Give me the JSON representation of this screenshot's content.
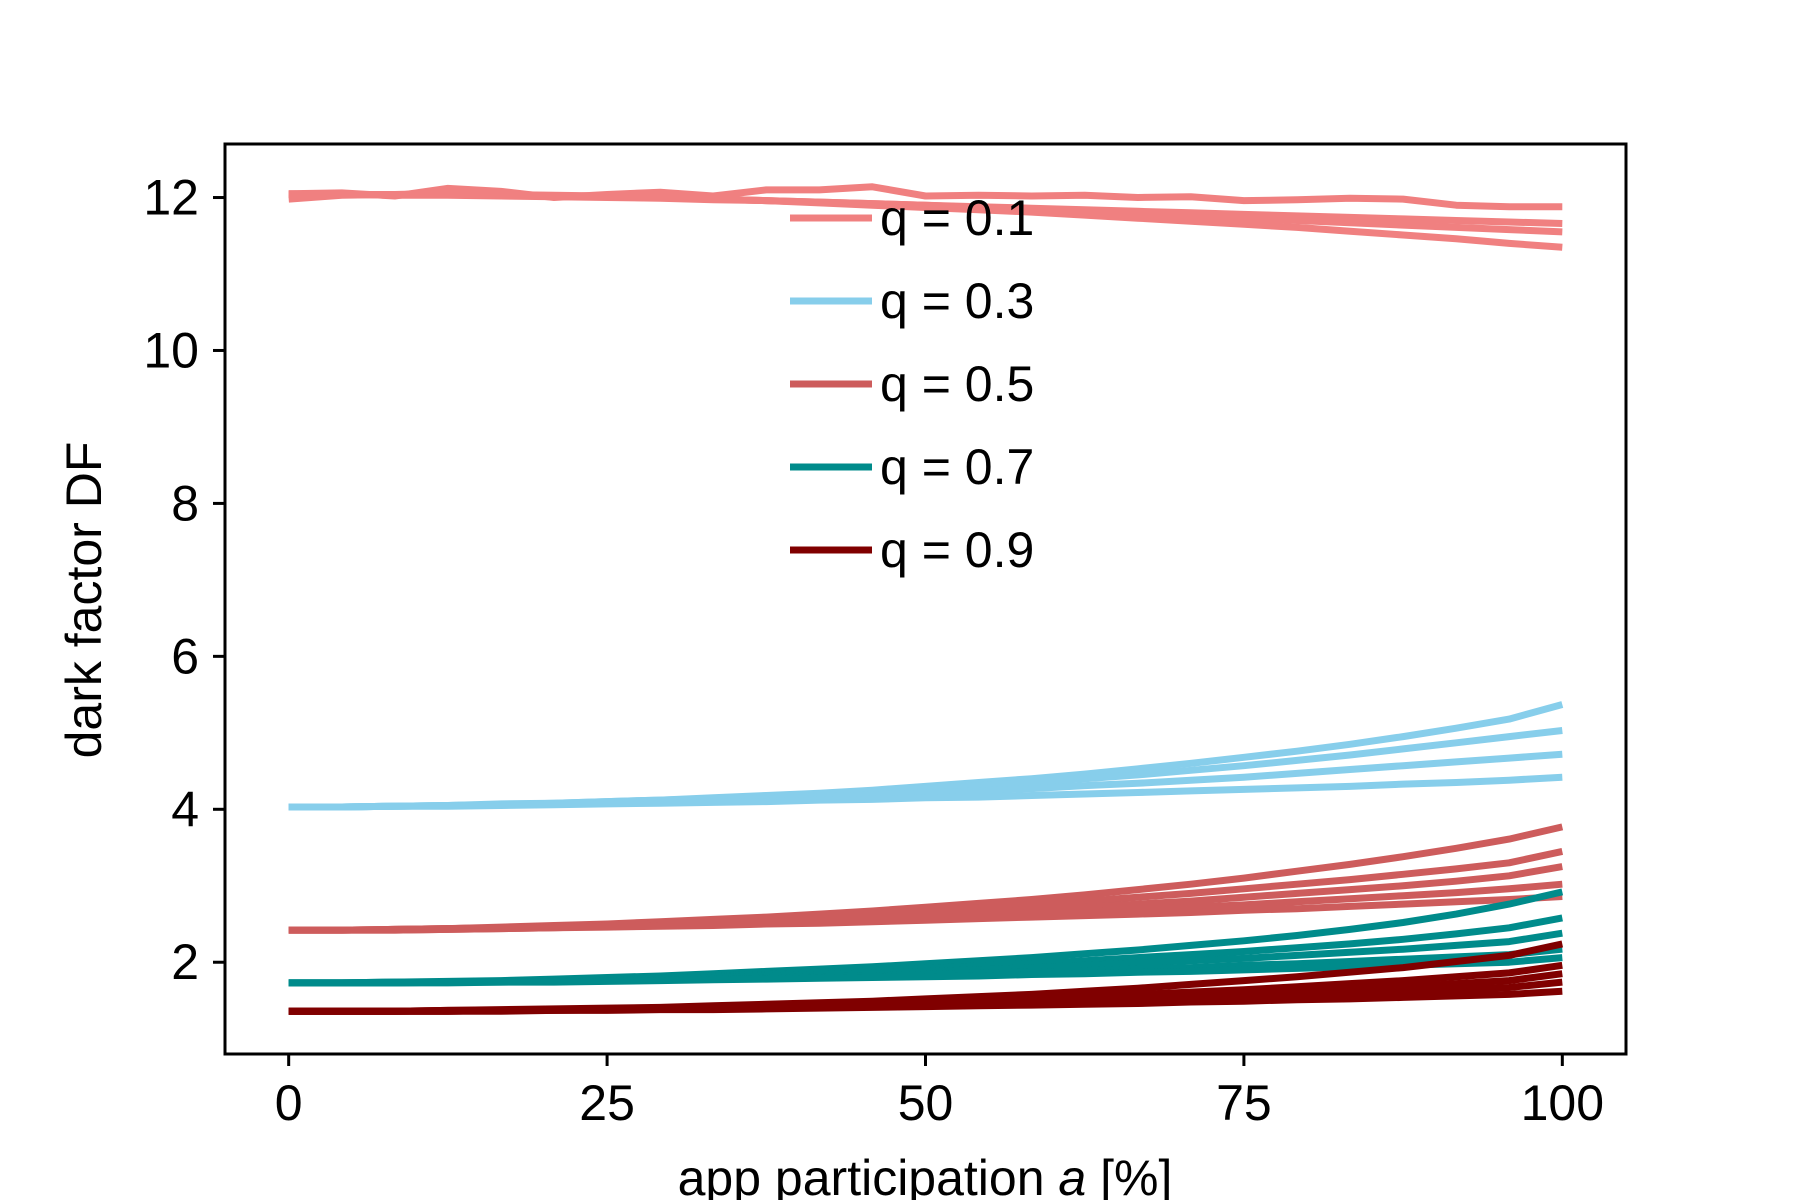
{
  "chart_data": {
    "type": "line",
    "title": "",
    "xlabel_main": "app participation ",
    "xlabel_var": "a",
    "xlabel_unit": " [%]",
    "ylabel": "dark factor DF",
    "xlim": [
      -5,
      105
    ],
    "ylim": [
      0.8,
      12.7
    ],
    "x_ticks": [
      0,
      25,
      50,
      75,
      100
    ],
    "y_ticks": [
      2,
      4,
      6,
      8,
      10,
      12
    ],
    "grid": false,
    "legend_position": "upper-center",
    "x": [
      0,
      4.17,
      8.33,
      12.5,
      16.67,
      20.83,
      25,
      29.17,
      33.33,
      37.5,
      41.67,
      45.83,
      50,
      54.17,
      58.33,
      62.5,
      66.67,
      70.83,
      75,
      79.17,
      83.33,
      87.5,
      91.67,
      95.83,
      100
    ],
    "groups": [
      {
        "name": "q = 0.1",
        "color": "#f08080",
        "curves": [
          [
            12.05,
            12.06,
            12.02,
            12.12,
            12.08,
            12.0,
            12.04,
            12.07,
            12.02,
            12.1,
            12.1,
            12.14,
            12.02,
            12.03,
            12.02,
            12.03,
            12.0,
            12.01,
            11.96,
            11.97,
            11.99,
            11.98,
            11.9,
            11.88,
            11.88
          ],
          [
            12.05,
            12.04,
            12.04,
            12.05,
            12.03,
            12.02,
            12.01,
            12.0,
            11.98,
            11.96,
            11.94,
            11.92,
            11.9,
            11.88,
            11.86,
            11.84,
            11.82,
            11.8,
            11.78,
            11.76,
            11.74,
            11.72,
            11.7,
            11.68,
            11.66
          ],
          [
            12.04,
            12.04,
            12.03,
            12.03,
            12.02,
            12.01,
            12.0,
            11.99,
            11.97,
            11.96,
            11.94,
            11.92,
            11.9,
            11.87,
            11.85,
            11.82,
            11.79,
            11.76,
            11.73,
            11.7,
            11.67,
            11.64,
            11.61,
            11.58,
            11.55
          ],
          [
            11.98,
            12.03,
            12.04,
            12.05,
            12.04,
            12.03,
            12.02,
            12.0,
            11.98,
            11.96,
            11.93,
            11.9,
            11.87,
            11.84,
            11.81,
            11.77,
            11.73,
            11.69,
            11.65,
            11.61,
            11.56,
            11.51,
            11.46,
            11.4,
            11.35
          ]
        ]
      },
      {
        "name": "q = 0.3",
        "color": "#87ceeb",
        "curves": [
          [
            4.03,
            4.03,
            4.04,
            4.05,
            4.07,
            4.08,
            4.1,
            4.12,
            4.15,
            4.18,
            4.21,
            4.25,
            4.3,
            4.35,
            4.4,
            4.46,
            4.53,
            4.6,
            4.68,
            4.76,
            4.85,
            4.95,
            5.06,
            5.18,
            5.37
          ],
          [
            4.03,
            4.03,
            4.04,
            4.05,
            4.06,
            4.08,
            4.1,
            4.12,
            4.14,
            4.17,
            4.2,
            4.23,
            4.27,
            4.31,
            4.35,
            4.4,
            4.45,
            4.51,
            4.57,
            4.64,
            4.71,
            4.79,
            4.87,
            4.95,
            5.03
          ],
          [
            4.03,
            4.03,
            4.04,
            4.05,
            4.06,
            4.07,
            4.09,
            4.1,
            4.12,
            4.14,
            4.16,
            4.19,
            4.21,
            4.24,
            4.27,
            4.31,
            4.34,
            4.38,
            4.42,
            4.47,
            4.52,
            4.57,
            4.62,
            4.67,
            4.72
          ],
          [
            4.03,
            4.03,
            4.04,
            4.04,
            4.05,
            4.06,
            4.07,
            4.08,
            4.09,
            4.1,
            4.12,
            4.13,
            4.15,
            4.16,
            4.18,
            4.2,
            4.22,
            4.24,
            4.26,
            4.28,
            4.3,
            4.33,
            4.35,
            4.38,
            4.42
          ]
        ]
      },
      {
        "name": "q = 0.5",
        "color": "#cd5c5c",
        "curves": [
          [
            2.42,
            2.42,
            2.43,
            2.44,
            2.46,
            2.48,
            2.5,
            2.53,
            2.56,
            2.59,
            2.63,
            2.67,
            2.72,
            2.77,
            2.82,
            2.88,
            2.95,
            3.02,
            3.1,
            3.19,
            3.28,
            3.38,
            3.49,
            3.61,
            3.77
          ],
          [
            2.42,
            2.42,
            2.43,
            2.44,
            2.45,
            2.47,
            2.49,
            2.51,
            2.54,
            2.57,
            2.6,
            2.63,
            2.67,
            2.71,
            2.75,
            2.8,
            2.85,
            2.9,
            2.96,
            3.02,
            3.08,
            3.15,
            3.22,
            3.3,
            3.45
          ],
          [
            2.42,
            2.42,
            2.43,
            2.44,
            2.45,
            2.46,
            2.48,
            2.5,
            2.52,
            2.54,
            2.57,
            2.59,
            2.62,
            2.65,
            2.69,
            2.72,
            2.76,
            2.8,
            2.85,
            2.9,
            2.95,
            3.0,
            3.06,
            3.13,
            3.25
          ],
          [
            2.42,
            2.42,
            2.42,
            2.43,
            2.44,
            2.45,
            2.47,
            2.48,
            2.5,
            2.52,
            2.54,
            2.56,
            2.58,
            2.61,
            2.63,
            2.66,
            2.69,
            2.72,
            2.75,
            2.79,
            2.83,
            2.87,
            2.91,
            2.96,
            3.02
          ],
          [
            2.42,
            2.42,
            2.42,
            2.43,
            2.44,
            2.45,
            2.46,
            2.47,
            2.48,
            2.5,
            2.51,
            2.53,
            2.55,
            2.57,
            2.59,
            2.61,
            2.63,
            2.65,
            2.68,
            2.7,
            2.73,
            2.76,
            2.79,
            2.82,
            2.86
          ]
        ]
      },
      {
        "name": "q = 0.7",
        "color": "#008b8b",
        "curves": [
          [
            1.73,
            1.73,
            1.74,
            1.75,
            1.76,
            1.78,
            1.8,
            1.82,
            1.85,
            1.88,
            1.91,
            1.94,
            1.98,
            2.02,
            2.06,
            2.11,
            2.16,
            2.22,
            2.28,
            2.35,
            2.43,
            2.52,
            2.63,
            2.76,
            2.92
          ],
          [
            1.73,
            1.73,
            1.74,
            1.74,
            1.75,
            1.77,
            1.78,
            1.8,
            1.82,
            1.84,
            1.87,
            1.89,
            1.92,
            1.95,
            1.98,
            2.02,
            2.06,
            2.1,
            2.14,
            2.19,
            2.24,
            2.3,
            2.37,
            2.45,
            2.58
          ],
          [
            1.73,
            1.73,
            1.73,
            1.74,
            1.75,
            1.76,
            1.77,
            1.78,
            1.8,
            1.82,
            1.84,
            1.86,
            1.88,
            1.9,
            1.93,
            1.96,
            1.99,
            2.02,
            2.05,
            2.09,
            2.13,
            2.17,
            2.22,
            2.27,
            2.38
          ],
          [
            1.73,
            1.73,
            1.73,
            1.74,
            1.74,
            1.75,
            1.76,
            1.77,
            1.78,
            1.79,
            1.81,
            1.82,
            1.84,
            1.86,
            1.87,
            1.89,
            1.91,
            1.93,
            1.96,
            1.98,
            2.01,
            2.04,
            2.07,
            2.1,
            2.17
          ],
          [
            1.73,
            1.73,
            1.73,
            1.73,
            1.74,
            1.74,
            1.75,
            1.76,
            1.77,
            1.78,
            1.79,
            1.8,
            1.81,
            1.82,
            1.84,
            1.85,
            1.87,
            1.88,
            1.9,
            1.92,
            1.94,
            1.96,
            1.98,
            2.0,
            2.06
          ]
        ]
      },
      {
        "name": "q = 0.9",
        "color": "#800000",
        "curves": [
          [
            1.36,
            1.36,
            1.36,
            1.37,
            1.38,
            1.39,
            1.4,
            1.41,
            1.43,
            1.45,
            1.47,
            1.49,
            1.52,
            1.55,
            1.58,
            1.62,
            1.66,
            1.71,
            1.76,
            1.81,
            1.87,
            1.93,
            2.01,
            2.09,
            2.24
          ],
          [
            1.36,
            1.36,
            1.36,
            1.37,
            1.37,
            1.38,
            1.39,
            1.4,
            1.41,
            1.43,
            1.44,
            1.46,
            1.48,
            1.5,
            1.53,
            1.55,
            1.58,
            1.61,
            1.64,
            1.68,
            1.72,
            1.76,
            1.81,
            1.86,
            1.96
          ],
          [
            1.36,
            1.36,
            1.36,
            1.36,
            1.37,
            1.38,
            1.38,
            1.39,
            1.4,
            1.41,
            1.43,
            1.44,
            1.46,
            1.47,
            1.49,
            1.51,
            1.54,
            1.56,
            1.59,
            1.62,
            1.65,
            1.68,
            1.72,
            1.76,
            1.85
          ],
          [
            1.36,
            1.36,
            1.36,
            1.36,
            1.37,
            1.37,
            1.38,
            1.39,
            1.39,
            1.4,
            1.41,
            1.42,
            1.44,
            1.45,
            1.46,
            1.48,
            1.5,
            1.52,
            1.54,
            1.56,
            1.58,
            1.61,
            1.64,
            1.67,
            1.74
          ],
          [
            1.36,
            1.36,
            1.36,
            1.36,
            1.36,
            1.37,
            1.37,
            1.38,
            1.38,
            1.39,
            1.4,
            1.41,
            1.42,
            1.43,
            1.44,
            1.45,
            1.46,
            1.48,
            1.49,
            1.51,
            1.52,
            1.54,
            1.56,
            1.58,
            1.62
          ]
        ]
      }
    ]
  }
}
